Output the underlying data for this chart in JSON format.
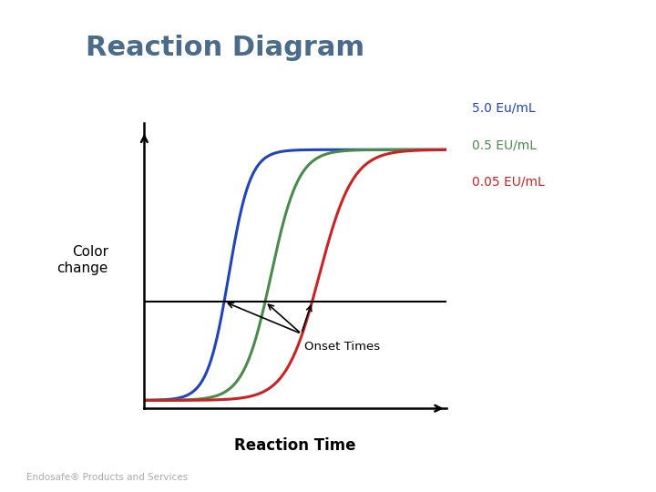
{
  "title": "Reaction Diagram",
  "title_color": "#4A6B8A",
  "title_fontsize": 22,
  "title_fontweight": "bold",
  "ylabel": "Color\nchange",
  "xlabel": "Reaction Time",
  "xlabel_fontsize": 12,
  "ylabel_fontsize": 11,
  "background_color": "#FFFFFF",
  "legend": [
    {
      "label": "5.0 Eu/mL",
      "color": "#2244BB"
    },
    {
      "label": "0.5 EU/mL",
      "color": "#4A8A4A"
    },
    {
      "label": "0.05 EU/mL",
      "color": "#CC2222"
    }
  ],
  "onset_line_y": 0.38,
  "onset_label": "Onset Times",
  "curves": [
    {
      "color": "#2244BB",
      "x0": 0.28,
      "k": 28
    },
    {
      "color": "#4A8A4A",
      "x0": 0.42,
      "k": 22
    },
    {
      "color": "#CC2222",
      "x0": 0.58,
      "k": 18
    }
  ],
  "xlim": [
    0,
    1.0
  ],
  "ylim": [
    -0.02,
    1.05
  ]
}
